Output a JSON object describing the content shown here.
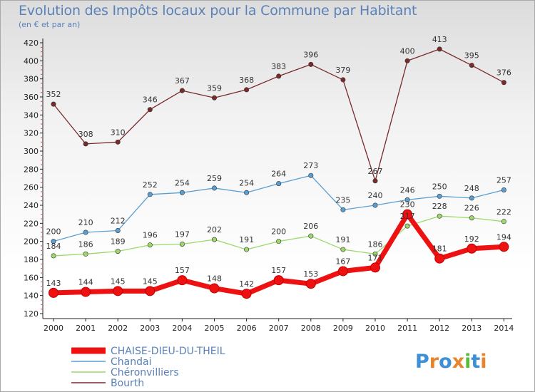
{
  "title": "Evolution des Impôts locaux pour la Commune par Habitant",
  "subtitle": "(en € et par an)",
  "brand": "Proxiti",
  "chart_data": {
    "type": "line",
    "categories": [
      "2000",
      "2001",
      "2002",
      "2003",
      "2004",
      "2005",
      "2006",
      "2007",
      "2008",
      "2009",
      "2010",
      "2011",
      "2012",
      "2013",
      "2014"
    ],
    "ylim": [
      120,
      420
    ],
    "yticks": [
      120,
      140,
      160,
      180,
      200,
      220,
      240,
      260,
      280,
      300,
      320,
      340,
      360,
      380,
      400,
      420
    ],
    "grid": false,
    "legend_position": "bottom-left",
    "series": [
      {
        "name": "CHAISE-DIEU-DU-THEIL",
        "color": "#ee1111",
        "values": [
          143,
          144,
          145,
          145,
          157,
          148,
          142,
          157,
          153,
          167,
          171,
          230,
          181,
          192,
          194
        ]
      },
      {
        "name": "Chandai",
        "color": "#5b9fd2",
        "values": [
          200,
          210,
          212,
          252,
          254,
          259,
          254,
          264,
          273,
          235,
          240,
          246,
          250,
          248,
          257
        ]
      },
      {
        "name": "Chéronvilliers",
        "color": "#9dd86a",
        "values": [
          184,
          186,
          189,
          196,
          197,
          202,
          191,
          200,
          206,
          191,
          186,
          217,
          228,
          226,
          222
        ]
      },
      {
        "name": "Bourth",
        "color": "#7a2a2a",
        "values": [
          352,
          308,
          310,
          346,
          367,
          359,
          368,
          383,
          396,
          379,
          267,
          400,
          413,
          395,
          376
        ]
      }
    ]
  }
}
